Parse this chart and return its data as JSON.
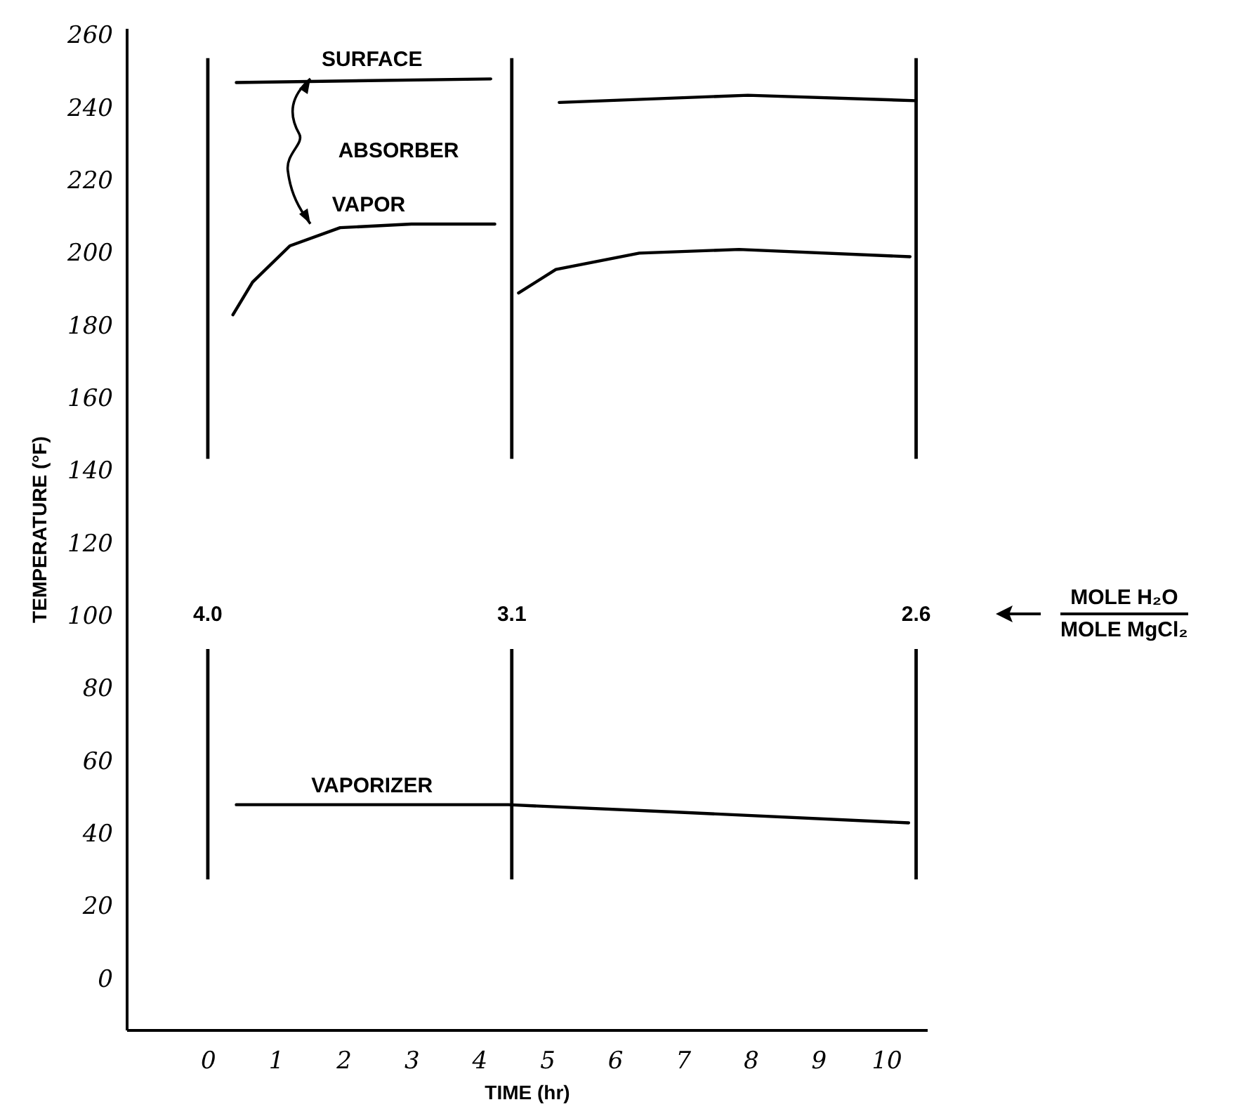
{
  "chart_data": {
    "type": "line",
    "xlabel": "TIME (hr)",
    "ylabel": "TEMPERATURE (°F)",
    "xlim": [
      -1.2,
      10.6
    ],
    "ylim": [
      -14,
      262
    ],
    "xticks": [
      0,
      1,
      2,
      3,
      4,
      5,
      6,
      7,
      8,
      9,
      10
    ],
    "yticks": [
      0,
      20,
      40,
      60,
      80,
      100,
      120,
      140,
      160,
      180,
      200,
      220,
      240,
      260
    ],
    "line_style": "solid",
    "series": [
      {
        "name": "SURFACE",
        "color": "#000000",
        "x": [
          0.42,
          4.17
        ],
        "values": [
          247,
          248
        ]
      },
      {
        "name": "VAPOR",
        "color": "#000000",
        "x": [
          0.37,
          0.66,
          1.21,
          1.95,
          3,
          4.23
        ],
        "values": [
          183,
          192,
          202,
          207,
          208,
          208
        ]
      },
      {
        "color": "#000000",
        "x": [
          5.18,
          7.96,
          10.44
        ],
        "values": [
          241.5,
          243.5,
          242
        ]
      },
      {
        "color": "#000000",
        "x": [
          4.58,
          5.13,
          6.36,
          7.83,
          10.35
        ],
        "values": [
          189,
          195.5,
          200,
          201,
          199
        ]
      },
      {
        "name": "VAPORIZER",
        "color": "#000000",
        "x": [
          0.42,
          4.43,
          6.86,
          10.33
        ],
        "values": [
          48,
          48,
          46,
          43
        ]
      }
    ],
    "ref_lines": [
      {
        "axis": "x",
        "value": 0,
        "color": "#000000"
      },
      {
        "axis": "x",
        "value": 4.48,
        "color": "#000000"
      },
      {
        "axis": "x",
        "value": 10.44,
        "color": "#000000"
      }
    ],
    "annotations": [
      "ABSORBER",
      "4.0",
      "3.1",
      "2.6",
      "MOLE H₂O",
      "MOLE MgCl₂"
    ]
  }
}
